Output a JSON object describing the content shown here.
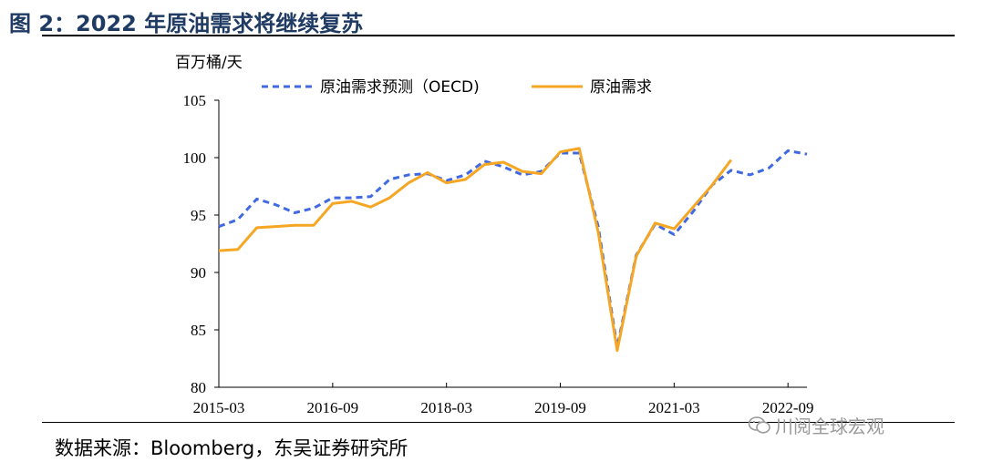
{
  "figure": {
    "title": "图 2：2022 年原油需求将继续复苏",
    "source": "数据来源：Bloomberg，东吴证券研究所",
    "watermark": "川阅全球宏观",
    "watermark_icon": "wechat-icon"
  },
  "chart_data": {
    "type": "line",
    "title": "",
    "ylabel": "百万桶/天",
    "xlabel": "",
    "ylim": [
      80,
      105
    ],
    "yticks": [
      80,
      85,
      90,
      95,
      100,
      105
    ],
    "xticks": [
      "2015-03",
      "2016-09",
      "2018-03",
      "2019-09",
      "2021-03",
      "2022-09"
    ],
    "grid": false,
    "legend": "top",
    "series": [
      {
        "name": "原油需求预测（OECD)",
        "style": "dashed",
        "color": "#4169e1",
        "points": [
          [
            "2015-03",
            94.0
          ],
          [
            "2015-06",
            94.6
          ],
          [
            "2015-09",
            96.4
          ],
          [
            "2015-12",
            95.9
          ],
          [
            "2016-03",
            95.2
          ],
          [
            "2016-06",
            95.6
          ],
          [
            "2016-09",
            96.5
          ],
          [
            "2016-12",
            96.5
          ],
          [
            "2017-03",
            96.6
          ],
          [
            "2017-06",
            98.1
          ],
          [
            "2017-09",
            98.5
          ],
          [
            "2017-12",
            98.6
          ],
          [
            "2018-03",
            98.0
          ],
          [
            "2018-06",
            98.5
          ],
          [
            "2018-09",
            99.7
          ],
          [
            "2018-12",
            99.2
          ],
          [
            "2019-03",
            98.5
          ],
          [
            "2019-06",
            98.8
          ],
          [
            "2019-09",
            100.4
          ],
          [
            "2019-12",
            100.4
          ],
          [
            "2020-03",
            94.0
          ],
          [
            "2020-06",
            83.5
          ],
          [
            "2020-09",
            91.5
          ],
          [
            "2020-12",
            94.2
          ],
          [
            "2021-03",
            93.3
          ],
          [
            "2021-06",
            95.3
          ],
          [
            "2021-09",
            97.6
          ],
          [
            "2021-12",
            98.9
          ],
          [
            "2022-03",
            98.5
          ],
          [
            "2022-06",
            99.1
          ],
          [
            "2022-09",
            100.6
          ],
          [
            "2022-12",
            100.3
          ]
        ]
      },
      {
        "name": "原油需求",
        "style": "solid",
        "color": "#f5a623",
        "points": [
          [
            "2015-03",
            91.9
          ],
          [
            "2015-06",
            92.0
          ],
          [
            "2015-09",
            93.9
          ],
          [
            "2015-12",
            94.0
          ],
          [
            "2016-03",
            94.1
          ],
          [
            "2016-06",
            94.1
          ],
          [
            "2016-09",
            96.0
          ],
          [
            "2016-12",
            96.2
          ],
          [
            "2017-03",
            95.7
          ],
          [
            "2017-06",
            96.5
          ],
          [
            "2017-09",
            97.8
          ],
          [
            "2017-12",
            98.7
          ],
          [
            "2018-03",
            97.8
          ],
          [
            "2018-06",
            98.1
          ],
          [
            "2018-09",
            99.4
          ],
          [
            "2018-12",
            99.6
          ],
          [
            "2019-03",
            98.8
          ],
          [
            "2019-06",
            98.6
          ],
          [
            "2019-09",
            100.5
          ],
          [
            "2019-12",
            100.8
          ],
          [
            "2020-03",
            93.5
          ],
          [
            "2020-06",
            83.2
          ],
          [
            "2020-09",
            91.4
          ],
          [
            "2020-12",
            94.3
          ],
          [
            "2021-03",
            93.8
          ],
          [
            "2021-06",
            95.7
          ],
          [
            "2021-09",
            97.6
          ],
          [
            "2021-12",
            99.8
          ]
        ]
      }
    ]
  }
}
